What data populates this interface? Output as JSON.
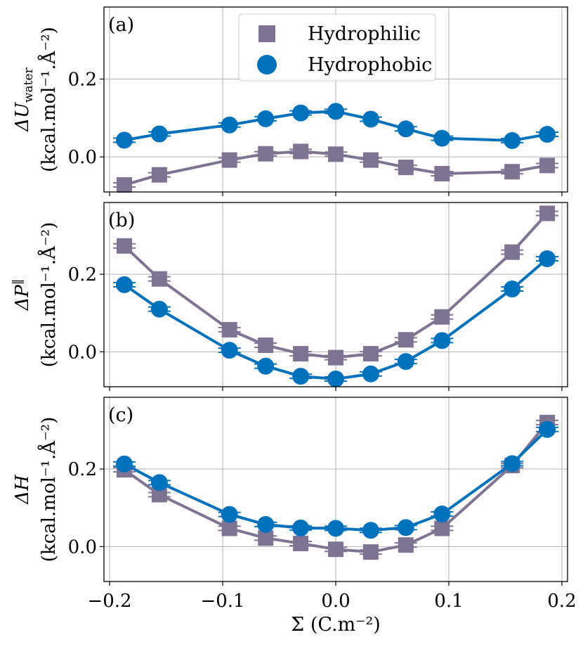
{
  "chart_data": {
    "type": "line",
    "xlabel": "Σ (C.m⁻²)",
    "xlim": [
      -0.205,
      0.205
    ],
    "xticks": [
      -0.2,
      -0.1,
      0.0,
      0.1,
      0.2
    ],
    "xtick_labels": [
      "−0.2",
      "−0.1",
      "0.0",
      "0.1",
      "0.2"
    ],
    "legend": {
      "placement": "top-center",
      "entries": [
        "Hydrophilic",
        "Hydrophobic"
      ]
    },
    "colors": {
      "Hydrophilic": "#7f7394",
      "Hydrophobic": "#0072bd"
    },
    "x": [
      -0.187,
      -0.156,
      -0.094,
      -0.062,
      -0.031,
      0.0,
      0.031,
      0.062,
      0.094,
      0.156,
      0.187
    ],
    "panels": [
      {
        "label": "(a)",
        "ylabel_quantity": "ΔU",
        "ylabel_subscript": "water",
        "ylabel_units": "(kcal.mol⁻¹.Å⁻²)",
        "ylim": [
          -0.09,
          0.385
        ],
        "yticks": [
          0.0,
          0.2
        ],
        "ytick_labels": [
          "0.0",
          "0.2"
        ],
        "series": [
          {
            "name": "Hydrophilic",
            "marker": "square",
            "values": [
              -0.072,
              -0.046,
              -0.008,
              0.008,
              0.014,
              0.007,
              -0.008,
              -0.027,
              -0.043,
              -0.038,
              -0.022
            ]
          },
          {
            "name": "Hydrophobic",
            "marker": "circle",
            "values": [
              0.043,
              0.059,
              0.082,
              0.098,
              0.113,
              0.117,
              0.097,
              0.072,
              0.048,
              0.042,
              0.058
            ]
          }
        ]
      },
      {
        "label": "(b)",
        "ylabel_quantity": "ΔP",
        "ylabel_superscript": "‖",
        "ylabel_units": "(kcal.mol⁻¹.Å⁻²)",
        "ylim": [
          -0.09,
          0.385
        ],
        "yticks": [
          0.0,
          0.2
        ],
        "ytick_labels": [
          "0.0",
          "0.2"
        ],
        "series": [
          {
            "name": "Hydrophilic",
            "marker": "square",
            "values": [
              0.273,
              0.188,
              0.057,
              0.017,
              -0.005,
              -0.015,
              -0.005,
              0.031,
              0.09,
              0.257,
              0.357
            ]
          },
          {
            "name": "Hydrophobic",
            "marker": "circle",
            "values": [
              0.173,
              0.11,
              0.004,
              -0.037,
              -0.063,
              -0.07,
              -0.057,
              -0.025,
              0.029,
              0.162,
              0.24
            ]
          }
        ]
      },
      {
        "label": "(c)",
        "ylabel_quantity": "ΔH",
        "ylabel_units": "(kcal.mol⁻¹.Å⁻²)",
        "ylim": [
          -0.09,
          0.385
        ],
        "yticks": [
          0.0,
          0.2
        ],
        "ytick_labels": [
          "0.0",
          "0.2"
        ],
        "series": [
          {
            "name": "Hydrophilic",
            "marker": "square",
            "values": [
              0.198,
              0.134,
              0.047,
              0.022,
              0.008,
              -0.007,
              -0.014,
              0.004,
              0.047,
              0.209,
              0.32
            ]
          },
          {
            "name": "Hydrophobic",
            "marker": "circle",
            "values": [
              0.213,
              0.165,
              0.083,
              0.057,
              0.048,
              0.047,
              0.042,
              0.049,
              0.084,
              0.214,
              0.302
            ]
          }
        ]
      }
    ]
  }
}
